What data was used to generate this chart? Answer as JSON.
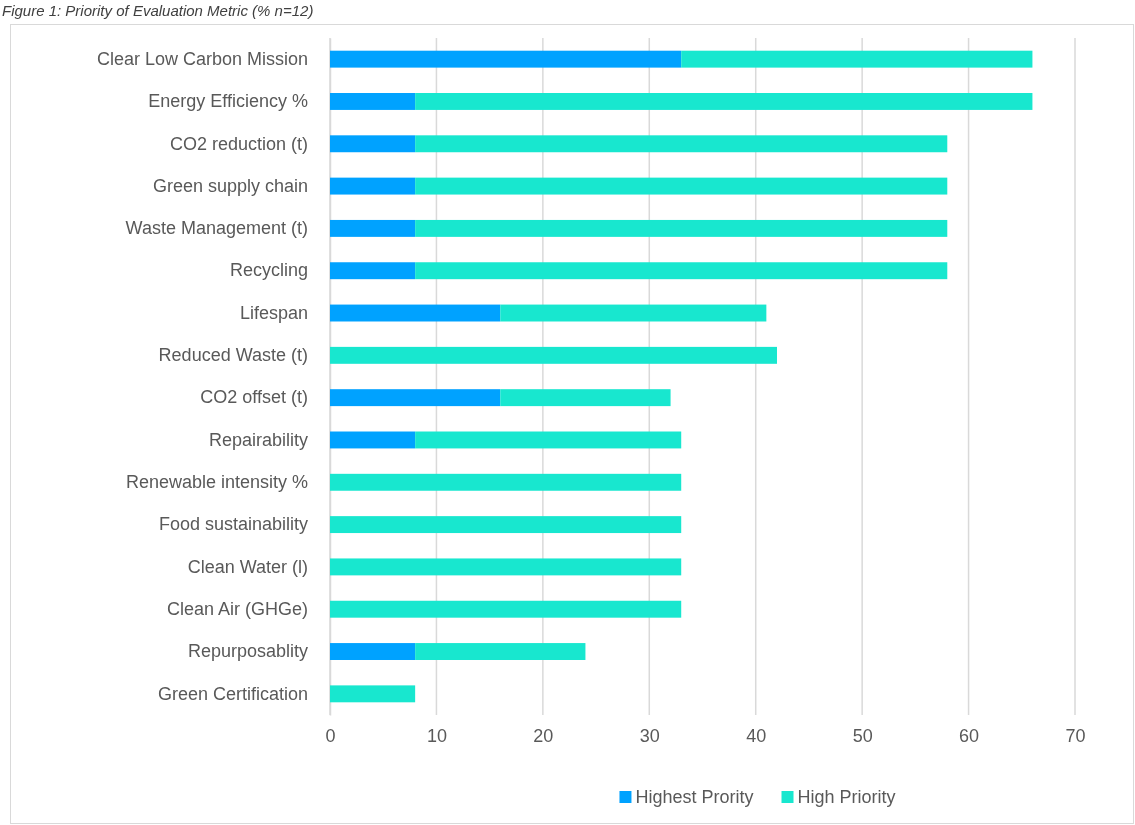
{
  "chart_data": {
    "type": "bar",
    "orientation": "horizontal",
    "stacked": true,
    "title": "Figure 1: Priority of Evaluation Metric (% n=12)",
    "categories": [
      "Clear Low Carbon Mission",
      "Energy Efficiency %",
      "CO2  reduction (t)",
      "Green supply chain",
      "Waste Management (t)",
      "Recycling",
      "Lifespan",
      "Reduced Waste (t)",
      "CO2  offset (t)",
      "Repairability",
      "Renewable intensity %",
      "Food sustainability",
      "Clean Water (l)",
      "Clean Air (GHGe)",
      "Repurposablity",
      "Green Certification"
    ],
    "series": [
      {
        "name": "Highest Prority",
        "color": "#00a2ff",
        "values": [
          33,
          8,
          8,
          8,
          8,
          8,
          16,
          0,
          16,
          8,
          0,
          0,
          0,
          0,
          8,
          0
        ]
      },
      {
        "name": "High Priority",
        "color": "#18e7cf",
        "values": [
          33,
          58,
          50,
          50,
          50,
          50,
          25,
          42,
          16,
          25,
          33,
          33,
          33,
          33,
          16,
          8
        ]
      }
    ],
    "xlim": [
      0,
      70
    ],
    "xticks": [
      0,
      10,
      20,
      30,
      40,
      50,
      60,
      70
    ],
    "grid": "x",
    "legend": "bottom"
  }
}
